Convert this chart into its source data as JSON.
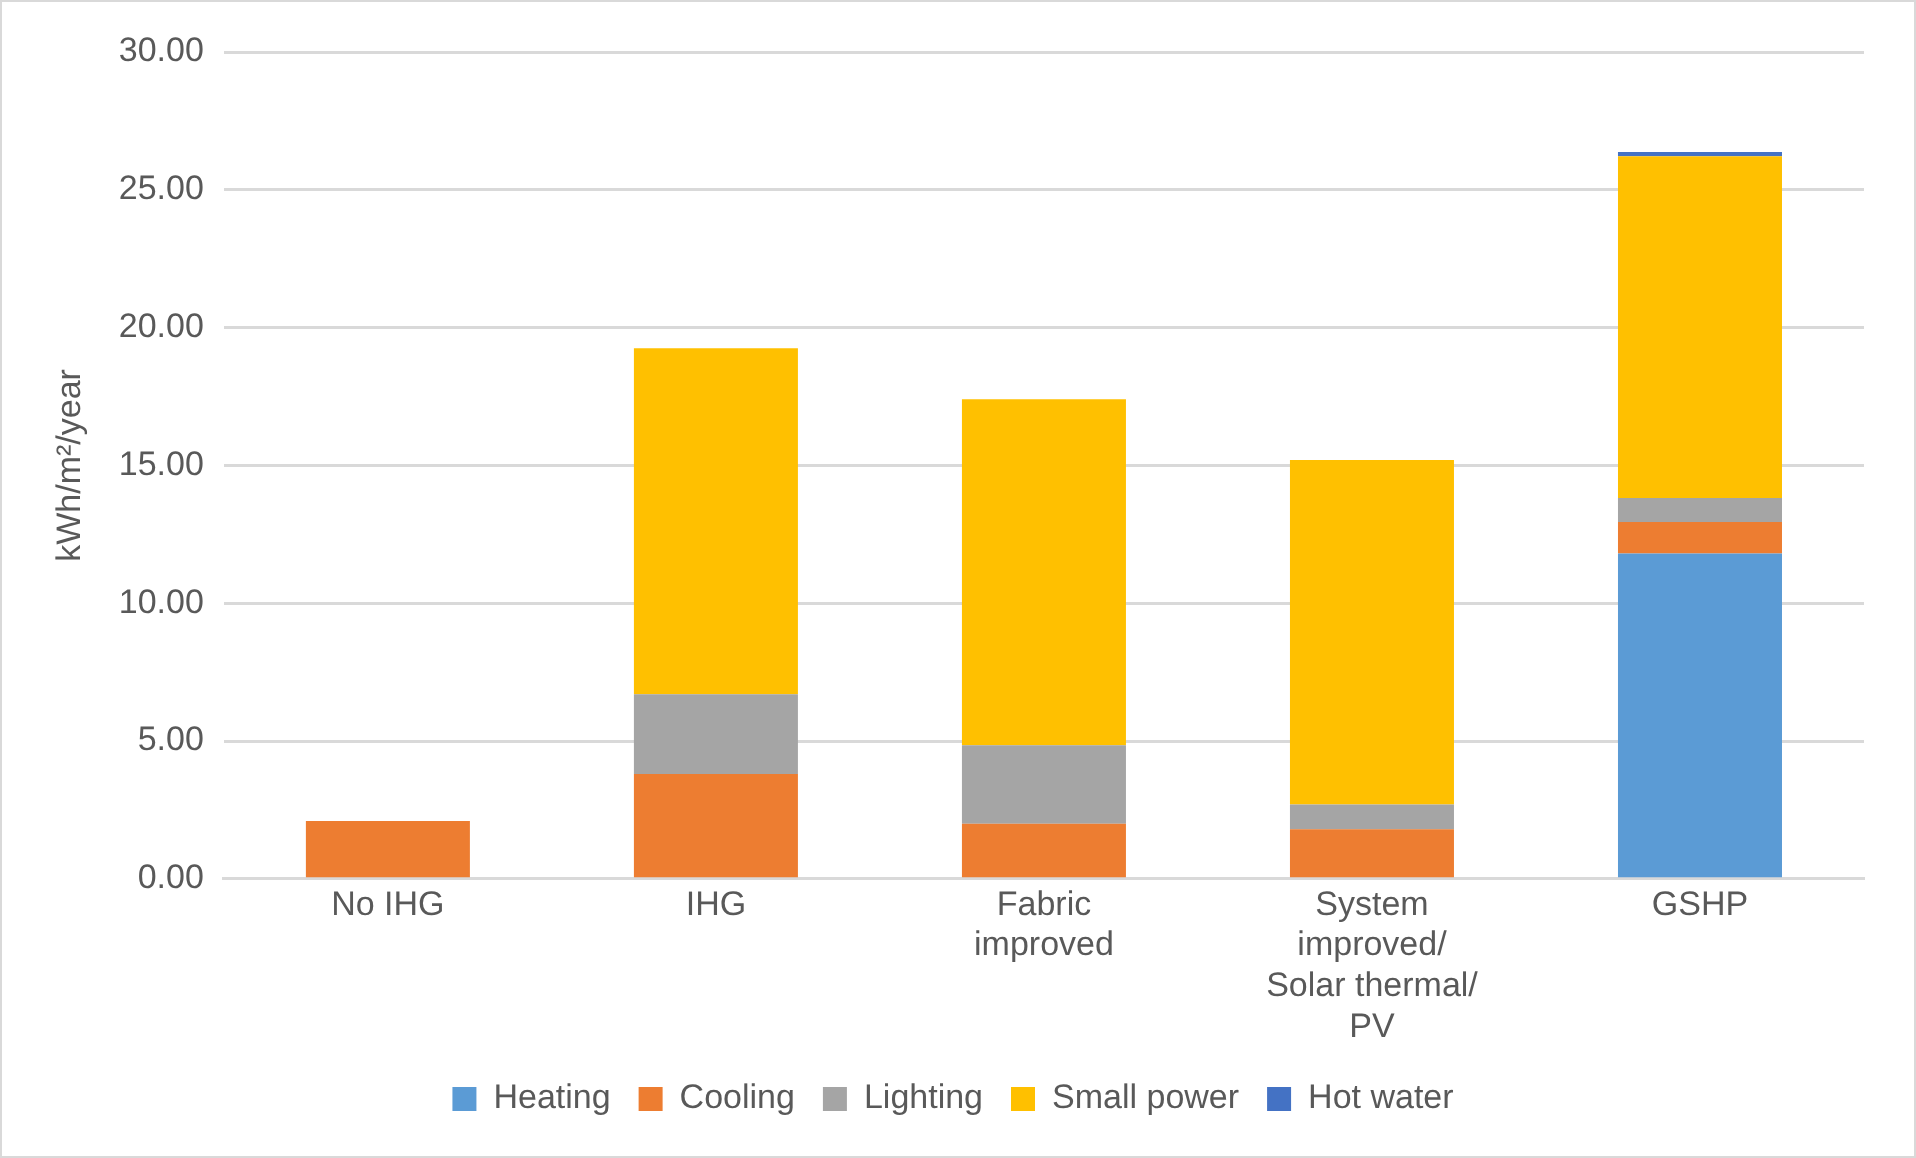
{
  "chart_data": {
    "type": "bar",
    "stacked": true,
    "ylabel": "kWh/m²/year",
    "categories": [
      "No IHG",
      "IHG",
      "Fabric improved",
      "System improved/ Solar thermal/ PV",
      "GSHP"
    ],
    "series": [
      {
        "name": "Heating",
        "color": "#5b9bd5",
        "values": [
          0,
          0,
          0,
          0,
          11.8
        ]
      },
      {
        "name": "Cooling",
        "color": "#ed7d31",
        "values": [
          2.1,
          3.8,
          2.0,
          1.8,
          1.15
        ]
      },
      {
        "name": "Lighting",
        "color": "#a5a5a5",
        "values": [
          0,
          2.9,
          2.85,
          0.9,
          0.87
        ]
      },
      {
        "name": "Small power",
        "color": "#ffc000",
        "values": [
          0,
          12.55,
          12.55,
          12.5,
          12.4
        ]
      },
      {
        "name": "Hot water",
        "color": "#4472c4",
        "values": [
          0,
          0,
          0,
          0,
          0.15
        ]
      }
    ],
    "ylim": [
      0,
      30
    ],
    "yticks": [
      {
        "value": 0,
        "label": "0.00"
      },
      {
        "value": 5,
        "label": "5.00"
      },
      {
        "value": 10,
        "label": "10.00"
      },
      {
        "value": 15,
        "label": "15.00"
      },
      {
        "value": 20,
        "label": "20.00"
      },
      {
        "value": 25,
        "label": "25.00"
      },
      {
        "value": 30,
        "label": "30.00"
      }
    ],
    "grid": "y",
    "legend": "bottom"
  }
}
